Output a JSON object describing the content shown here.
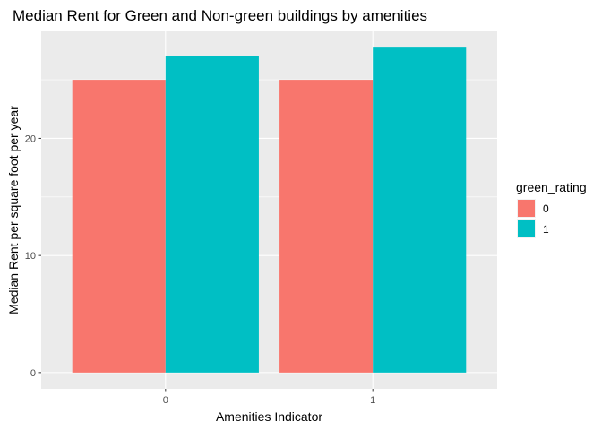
{
  "chart_data": {
    "type": "bar",
    "title": "Median Rent for Green and Non-green buildings by amenities",
    "xlabel": "Amenities Indicator",
    "ylabel": "Median Rent per square foot per year",
    "categories": [
      "0",
      "1"
    ],
    "series": [
      {
        "name": "0",
        "values": [
          25.0,
          25.0
        ],
        "color": "#F8766D"
      },
      {
        "name": "1",
        "values": [
          27.0,
          27.75
        ],
        "color": "#00BFC4"
      }
    ],
    "ylim": [
      -1.3875,
      29.1375
    ],
    "yticks": [
      0,
      10,
      20
    ],
    "legend": {
      "title": "green_rating",
      "position": "right"
    },
    "panel_background": "#EBEBEB",
    "grid_major_color": "#FFFFFF",
    "grid": true
  }
}
